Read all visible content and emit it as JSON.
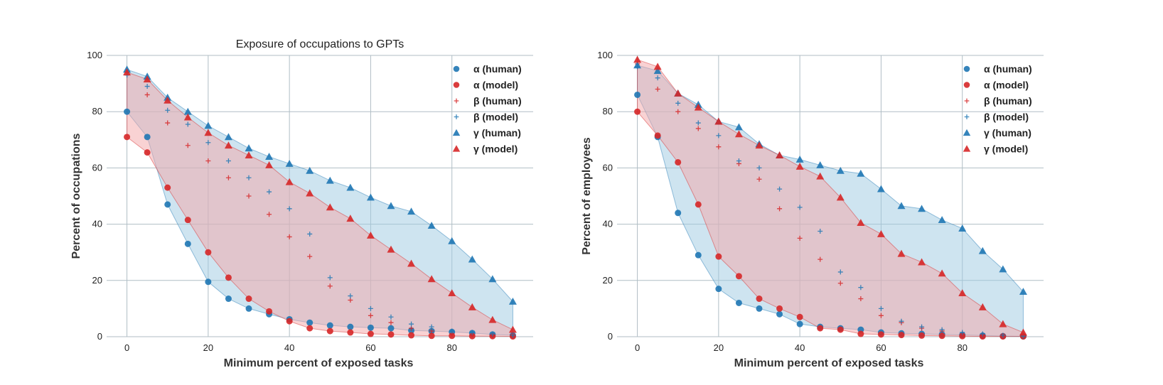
{
  "colors": {
    "human": "#1f77b4",
    "model": "#d62728",
    "human_fill": "#9ecae1",
    "model_fill": "#f4a6a8",
    "grid": "#b0bec5"
  },
  "chart_data": [
    {
      "type": "scatter",
      "title": "Exposure of occupations to GPTs",
      "xlabel": "Minimum percent of exposed tasks",
      "ylabel": "Percent of occupations",
      "xlim": [
        -5,
        100
      ],
      "ylim": [
        0,
        100
      ],
      "xticks": [
        "0",
        "20",
        "40",
        "60",
        "80"
      ],
      "yticks": [
        "0",
        "20",
        "40",
        "60",
        "80",
        "100"
      ],
      "grid": true,
      "legend_position": "top-right",
      "x": [
        0,
        5,
        10,
        15,
        20,
        25,
        30,
        35,
        40,
        45,
        50,
        55,
        60,
        65,
        70,
        75,
        80,
        85,
        90,
        95
      ],
      "series": [
        {
          "name": "α (human)",
          "marker": "circle",
          "group": "human",
          "values": [
            80,
            71,
            47,
            33,
            19.5,
            13.5,
            10,
            8,
            6.2,
            5,
            4,
            3.5,
            3.2,
            3,
            2.2,
            2,
            1.7,
            1.3,
            0.8,
            0.5
          ]
        },
        {
          "name": "α (model)",
          "marker": "circle",
          "group": "model",
          "values": [
            71,
            65.5,
            53,
            41.5,
            30,
            21,
            13.5,
            9,
            5.5,
            3,
            2,
            1.5,
            1,
            0.8,
            0.5,
            0.3,
            0.3,
            0.2,
            0.2,
            0.1
          ]
        },
        {
          "name": "β (human)",
          "marker": "plus",
          "group": "model",
          "values": [
            94,
            86,
            76,
            68,
            62.5,
            56.5,
            50,
            43.5,
            35.5,
            28.5,
            18,
            13,
            7.5,
            5,
            3,
            2,
            1,
            0.6,
            0.3,
            0.2
          ]
        },
        {
          "name": "β (model)",
          "marker": "plus",
          "group": "human",
          "values": [
            93,
            89,
            80.5,
            75.5,
            69,
            62.5,
            56.5,
            51.5,
            45.5,
            36.5,
            21,
            14.5,
            10,
            7,
            4.5,
            3.5,
            2,
            1.5,
            1,
            0.5
          ]
        },
        {
          "name": "γ (human)",
          "marker": "triangle",
          "group": "human",
          "values": [
            95,
            92.5,
            85,
            80,
            75,
            71,
            67,
            64,
            61.5,
            59,
            55.5,
            53,
            49.5,
            46.5,
            44.5,
            39.5,
            34,
            27.5,
            20.5,
            12.5
          ]
        },
        {
          "name": "γ (model)",
          "marker": "triangle",
          "group": "model",
          "values": [
            94,
            91.5,
            84,
            78,
            72.5,
            68,
            64.5,
            61,
            55,
            51,
            46,
            42,
            36,
            31,
            26,
            20.5,
            15.5,
            10.5,
            6,
            2.5
          ]
        }
      ]
    },
    {
      "type": "scatter",
      "title": "",
      "xlabel": "Minimum percent of exposed tasks",
      "ylabel": "Percent of employees",
      "xlim": [
        -5,
        100
      ],
      "ylim": [
        0,
        100
      ],
      "xticks": [
        "0",
        "20",
        "40",
        "60",
        "80"
      ],
      "yticks": [
        "0",
        "20",
        "40",
        "60",
        "80",
        "100"
      ],
      "grid": true,
      "legend_position": "top-right",
      "x": [
        0,
        5,
        10,
        15,
        20,
        25,
        30,
        35,
        40,
        45,
        50,
        55,
        60,
        65,
        70,
        75,
        80,
        85,
        90,
        95
      ],
      "series": [
        {
          "name": "α (human)",
          "marker": "circle",
          "group": "human",
          "values": [
            86,
            71,
            44,
            29,
            17,
            12,
            10,
            8,
            4.5,
            3.5,
            3,
            2.5,
            1.5,
            1.2,
            1,
            0.8,
            0.6,
            0.4,
            0.2,
            0.1
          ]
        },
        {
          "name": "α (model)",
          "marker": "circle",
          "group": "model",
          "values": [
            80,
            71.5,
            62,
            47,
            28.5,
            21.5,
            13.5,
            10,
            7,
            3,
            2.5,
            1,
            0.8,
            0.6,
            0.4,
            0.3,
            0.2,
            0.1,
            0.1,
            0.1
          ]
        },
        {
          "name": "β (human)",
          "marker": "plus",
          "group": "model",
          "values": [
            97,
            88,
            80,
            74,
            67.5,
            61.5,
            56,
            45.5,
            35,
            27.5,
            19,
            13.5,
            7.5,
            5,
            3,
            2,
            1,
            0.5,
            0.3,
            0.1
          ]
        },
        {
          "name": "β (model)",
          "marker": "plus",
          "group": "human",
          "values": [
            96,
            92,
            83,
            76,
            71.5,
            62.5,
            60,
            52.5,
            46,
            37.5,
            23,
            17.5,
            10,
            5.5,
            3.5,
            2.5,
            1.5,
            1,
            0.5,
            0.2
          ]
        },
        {
          "name": "γ (human)",
          "marker": "triangle",
          "group": "human",
          "values": [
            96.5,
            94.5,
            86.5,
            82.5,
            76.5,
            74.5,
            68.5,
            64.5,
            63,
            61,
            59,
            58,
            52.5,
            46.5,
            45.5,
            41.5,
            38.5,
            30.5,
            24,
            16
          ]
        },
        {
          "name": "γ (model)",
          "marker": "triangle",
          "group": "model",
          "values": [
            98.5,
            96,
            86.5,
            81.5,
            76.5,
            72,
            68,
            64.5,
            60.5,
            57,
            49.5,
            40.5,
            36.5,
            29.5,
            26.5,
            22.5,
            15.5,
            10.5,
            4.5,
            1.5
          ]
        }
      ]
    }
  ]
}
